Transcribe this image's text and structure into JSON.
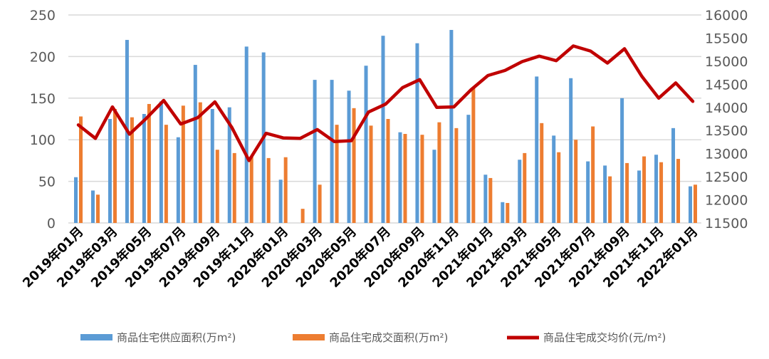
{
  "chart_data": {
    "type": "bar+line",
    "categories": [
      "2019年01月",
      "2019年02月",
      "2019年03月",
      "2019年04月",
      "2019年05月",
      "2019年06月",
      "2019年07月",
      "2019年08月",
      "2019年09月",
      "2019年10月",
      "2019年11月",
      "2019年12月",
      "2020年01月",
      "2020年02月",
      "2020年03月",
      "2020年04月",
      "2020年05月",
      "2020年06月",
      "2020年07月",
      "2020年08月",
      "2020年09月",
      "2020年10月",
      "2020年11月",
      "2020年12月",
      "2021年01月",
      "2021年02月",
      "2021年03月",
      "2021年04月",
      "2021年05月",
      "2021年06月",
      "2021年07月",
      "2021年08月",
      "2021年09月",
      "2021年10月",
      "2021年11月",
      "2021年12月",
      "2022年01月"
    ],
    "series": [
      {
        "name": "商品住宅供应面积(万m²)",
        "type": "bar",
        "axis": "left",
        "color": "#5B9BD5",
        "values": [
          55,
          39,
          125,
          220,
          131,
          146,
          103,
          190,
          137,
          139,
          212,
          205,
          52,
          0,
          172,
          172,
          159,
          189,
          225,
          109,
          216,
          88,
          232,
          130,
          58,
          25,
          76,
          176,
          105,
          174,
          74,
          69,
          150,
          63,
          82,
          114,
          44
        ]
      },
      {
        "name": "商品住宅成交面积(万m²)",
        "type": "bar",
        "axis": "left",
        "color": "#ED7D31",
        "values": [
          128,
          34,
          137,
          127,
          143,
          118,
          141,
          145,
          88,
          84,
          80,
          78,
          79,
          17,
          46,
          118,
          138,
          117,
          125,
          107,
          106,
          121,
          114,
          163,
          54,
          24,
          84,
          120,
          85,
          100,
          116,
          56,
          72,
          80,
          73,
          77,
          46
        ]
      },
      {
        "name": "商品住宅成交均价(元/m²)",
        "type": "line",
        "axis": "right",
        "color": "#C00000",
        "values": [
          13620,
          13330,
          14010,
          13420,
          13770,
          14150,
          13640,
          13780,
          14120,
          13560,
          12850,
          13440,
          13340,
          13330,
          13520,
          13260,
          13280,
          13900,
          14070,
          14430,
          14600,
          14000,
          14010,
          14380,
          14690,
          14800,
          14990,
          15110,
          15010,
          15330,
          15220,
          14960,
          15270,
          14680,
          14200,
          14530,
          14130
        ]
      }
    ],
    "y_left": {
      "range": [
        0,
        250
      ],
      "ticks": [
        "0",
        "50",
        "100",
        "150",
        "200",
        "250"
      ]
    },
    "y_right": {
      "range": [
        11500,
        16000
      ],
      "ticks": [
        "11500",
        "12000",
        "12500",
        "13000",
        "13500",
        "14000",
        "14500",
        "15000",
        "15500",
        "16000"
      ]
    },
    "x_tick_labels": [
      "2019年01月",
      "2019年03月",
      "2019年05月",
      "2019年07月",
      "2019年09月",
      "2019年11月",
      "2020年01月",
      "2020年03月",
      "2020年05月",
      "2020年07月",
      "2020年09月",
      "2020年11月",
      "2021年01月",
      "2021年03月",
      "2021年05月",
      "2021年07月",
      "2021年09月",
      "2021年11月",
      "2022年01月"
    ],
    "grid": true,
    "legend_position": "bottom"
  }
}
